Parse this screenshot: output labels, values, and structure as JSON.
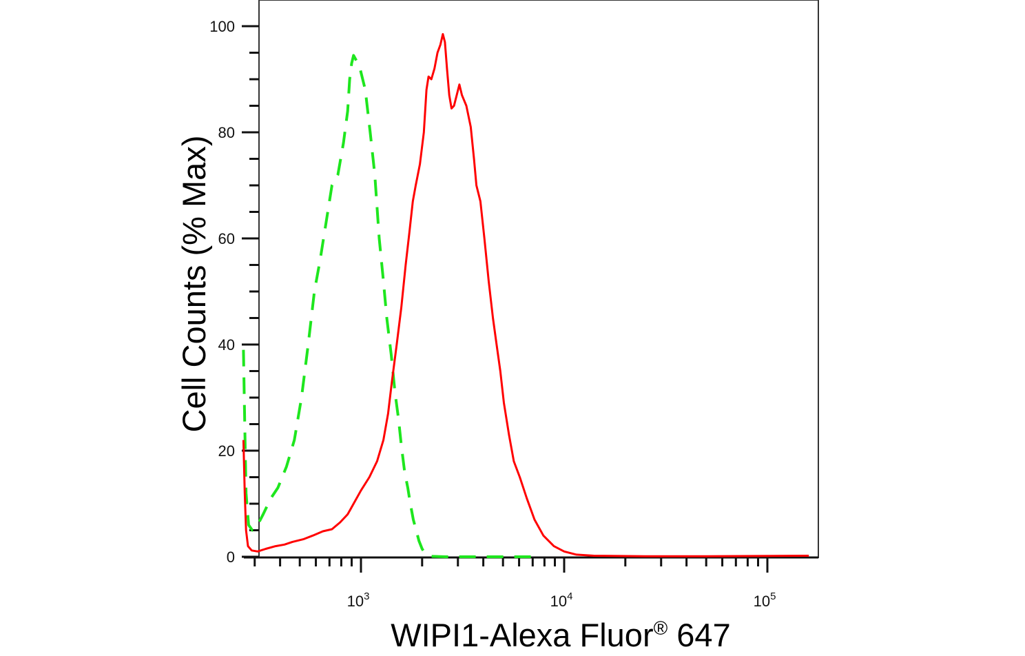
{
  "chart_data": {
    "type": "line",
    "title": "",
    "xlabel": "WIPI1-Alexa Fluor",
    "xlabel_mark": "®",
    "xlabel_suffix": " 647",
    "ylabel": "Cell Counts (% Max)",
    "x_scale": "log",
    "xlim": [
      264,
      160000
    ],
    "ylim": [
      0,
      105
    ],
    "grid": false,
    "legend": "none",
    "y_ticks": [
      {
        "label": "0",
        "value": 0
      },
      {
        "label": "20",
        "value": 20
      },
      {
        "label": "40",
        "value": 40
      },
      {
        "label": "60",
        "value": 60
      },
      {
        "label": "80",
        "value": 80
      },
      {
        "label": "100",
        "value": 100
      }
    ],
    "x_ticks": [
      {
        "base": "10",
        "exp": "3",
        "value": 1000
      },
      {
        "base": "10",
        "exp": "4",
        "value": 10000
      },
      {
        "base": "10",
        "exp": "5",
        "value": 100000
      }
    ],
    "series": [
      {
        "color": "#ff0000",
        "style": "solid",
        "points": [
          [
            264,
            22
          ],
          [
            268,
            12
          ],
          [
            272,
            5
          ],
          [
            278,
            2
          ],
          [
            290,
            1.2
          ],
          [
            310,
            1
          ],
          [
            340,
            1.5
          ],
          [
            380,
            2
          ],
          [
            420,
            2.3
          ],
          [
            460,
            2.8
          ],
          [
            520,
            3.3
          ],
          [
            580,
            4
          ],
          [
            650,
            4.8
          ],
          [
            720,
            5.2
          ],
          [
            790,
            6.5
          ],
          [
            860,
            8
          ],
          [
            920,
            10
          ],
          [
            1000,
            12.5
          ],
          [
            1100,
            15
          ],
          [
            1200,
            18
          ],
          [
            1290,
            22
          ],
          [
            1360,
            27
          ],
          [
            1420,
            33
          ],
          [
            1500,
            40
          ],
          [
            1580,
            47
          ],
          [
            1660,
            55
          ],
          [
            1730,
            61
          ],
          [
            1800,
            67
          ],
          [
            1860,
            70
          ],
          [
            1950,
            74
          ],
          [
            2040,
            80
          ],
          [
            2100,
            88
          ],
          [
            2150,
            90.5
          ],
          [
            2220,
            90
          ],
          [
            2300,
            92
          ],
          [
            2380,
            95
          ],
          [
            2460,
            96.5
          ],
          [
            2530,
            98.5
          ],
          [
            2590,
            97
          ],
          [
            2650,
            92
          ],
          [
            2720,
            87
          ],
          [
            2790,
            84.5
          ],
          [
            2870,
            85
          ],
          [
            2960,
            87
          ],
          [
            3050,
            89
          ],
          [
            3140,
            87
          ],
          [
            3300,
            85
          ],
          [
            3470,
            81
          ],
          [
            3600,
            75
          ],
          [
            3700,
            70
          ],
          [
            3870,
            67
          ],
          [
            4050,
            60
          ],
          [
            4250,
            52
          ],
          [
            4460,
            45
          ],
          [
            4650,
            40
          ],
          [
            4850,
            35
          ],
          [
            5050,
            29
          ],
          [
            5350,
            23
          ],
          [
            5650,
            18
          ],
          [
            6050,
            15
          ],
          [
            6550,
            11
          ],
          [
            7150,
            7
          ],
          [
            7900,
            4
          ],
          [
            8900,
            2
          ],
          [
            10000,
            1
          ],
          [
            11500,
            0.4
          ],
          [
            14000,
            0.2
          ],
          [
            25000,
            0.1
          ],
          [
            50000,
            0.1
          ],
          [
            160000,
            0.2
          ]
        ]
      },
      {
        "color": "#1ee61e",
        "style": "dashed",
        "points": [
          [
            264,
            39
          ],
          [
            268,
            25
          ],
          [
            272,
            12
          ],
          [
            280,
            6
          ],
          [
            292,
            5
          ],
          [
            310,
            6
          ],
          [
            330,
            8
          ],
          [
            360,
            11
          ],
          [
            390,
            13
          ],
          [
            430,
            17
          ],
          [
            470,
            22
          ],
          [
            510,
            30
          ],
          [
            550,
            40
          ],
          [
            590,
            50
          ],
          [
            630,
            56
          ],
          [
            680,
            64
          ],
          [
            720,
            70
          ],
          [
            770,
            72
          ],
          [
            820,
            78
          ],
          [
            860,
            84
          ],
          [
            880,
            90
          ],
          [
            900,
            93
          ],
          [
            920,
            94.5
          ],
          [
            950,
            93.5
          ],
          [
            990,
            92
          ],
          [
            1050,
            88
          ],
          [
            1110,
            80
          ],
          [
            1170,
            72
          ],
          [
            1230,
            60
          ],
          [
            1290,
            52
          ],
          [
            1340,
            45
          ],
          [
            1410,
            38
          ],
          [
            1470,
            31
          ],
          [
            1530,
            26
          ],
          [
            1580,
            21
          ],
          [
            1640,
            16
          ],
          [
            1700,
            13
          ],
          [
            1750,
            10
          ],
          [
            1810,
            7
          ],
          [
            1870,
            5
          ],
          [
            1930,
            3
          ],
          [
            2000,
            1.5
          ],
          [
            2080,
            0.5
          ],
          [
            2150,
            0.1
          ],
          [
            2600,
            0
          ],
          [
            3500,
            0
          ],
          [
            4500,
            0
          ],
          [
            6000,
            0
          ],
          [
            7000,
            0
          ],
          [
            7600,
            0
          ]
        ]
      }
    ]
  }
}
